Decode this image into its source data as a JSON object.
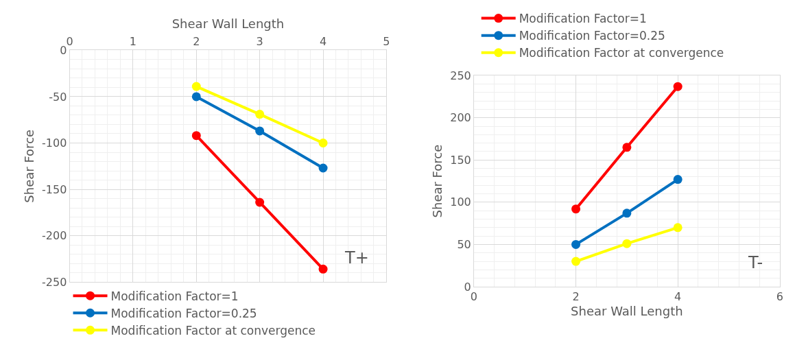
{
  "chart_data": [
    {
      "type": "line",
      "xlabel": "Shear Wall Length",
      "ylabel": "Shear Force",
      "x": [
        2,
        3,
        4
      ],
      "series": [
        {
          "name": "Modification Factor=1",
          "color": "#ff0000",
          "values": [
            -92,
            -164,
            -236
          ]
        },
        {
          "name": "Modification Factor=0.25",
          "color": "#0070c0",
          "values": [
            -50,
            -87,
            -127
          ]
        },
        {
          "name": "Modification Factor at convergence",
          "color": "#ffff00",
          "values": [
            -39,
            -69,
            -100
          ]
        }
      ],
      "xlim": [
        0,
        5
      ],
      "xticks": [
        0,
        1,
        2,
        3,
        4,
        5
      ],
      "ylim": [
        -250,
        0
      ],
      "yticks": [
        -250,
        -200,
        -150,
        -100,
        -50,
        0
      ],
      "annotations": [
        "T+"
      ],
      "grid": true,
      "legend": "bottom",
      "marker": "circle",
      "line_style": "solid"
    },
    {
      "type": "line",
      "xlabel": "Shear Wall Length",
      "ylabel": "Shear Force",
      "x": [
        2,
        3,
        4
      ],
      "series": [
        {
          "name": "Modification Factor=1",
          "color": "#ff0000",
          "values": [
            92,
            165,
            237
          ]
        },
        {
          "name": "Modification Factor=0.25",
          "color": "#0070c0",
          "values": [
            50,
            87,
            127
          ]
        },
        {
          "name": "Modification Factor at convergence",
          "color": "#ffff00",
          "values": [
            30,
            51,
            70
          ]
        }
      ],
      "xlim": [
        0,
        6
      ],
      "xticks": [
        0,
        2,
        4,
        6
      ],
      "ylim": [
        0,
        250
      ],
      "yticks": [
        0,
        50,
        100,
        150,
        200,
        250
      ],
      "annotations": [
        "T-"
      ],
      "grid": true,
      "legend": "top",
      "marker": "circle",
      "line_style": "solid"
    }
  ]
}
